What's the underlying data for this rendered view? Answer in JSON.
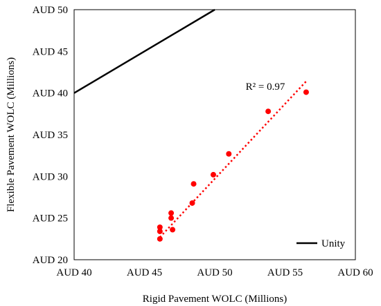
{
  "chart_data": {
    "type": "scatter",
    "xlabel": "Rigid Pavement WOLC (Millions)",
    "ylabel": "Flexible Pavement WOLC (Millions)",
    "xlim": [
      40,
      60
    ],
    "ylim": [
      20,
      50
    ],
    "x_ticks": [
      40,
      45,
      50,
      55,
      60
    ],
    "y_ticks": [
      20,
      25,
      30,
      35,
      40,
      45,
      50
    ],
    "x_tick_labels": [
      "AUD 40",
      "AUD 45",
      "AUD 50",
      "AUD 55",
      "AUD 60"
    ],
    "y_tick_labels": [
      "AUD 20",
      "AUD 25",
      "AUD 30",
      "AUD 35",
      "AUD 40",
      "AUD 45",
      "AUD 50"
    ],
    "grid": false,
    "series": [
      {
        "kind": "points",
        "color": "#ff0000",
        "x": [
          46.1,
          46.1,
          46.1,
          46.9,
          46.9,
          47.0,
          48.4,
          48.5,
          49.9,
          51.0,
          53.8,
          56.5
        ],
        "y": [
          22.5,
          23.4,
          23.9,
          25.0,
          25.6,
          23.6,
          26.8,
          29.1,
          30.2,
          32.7,
          37.8,
          40.1
        ]
      },
      {
        "kind": "trendline",
        "color": "#ff0000",
        "style": "dotted",
        "x": [
          46.1,
          56.5
        ],
        "y": [
          22.7,
          41.4
        ]
      },
      {
        "name": "Unity",
        "kind": "line",
        "color": "#000000",
        "x": [
          40,
          50
        ],
        "y": [
          40,
          50
        ]
      }
    ],
    "annotations": [
      {
        "text": "R² = 0.97",
        "x": 52.2,
        "y": 40.4
      }
    ],
    "legend": {
      "position": "bottom-right",
      "entries": [
        "Unity"
      ]
    }
  }
}
